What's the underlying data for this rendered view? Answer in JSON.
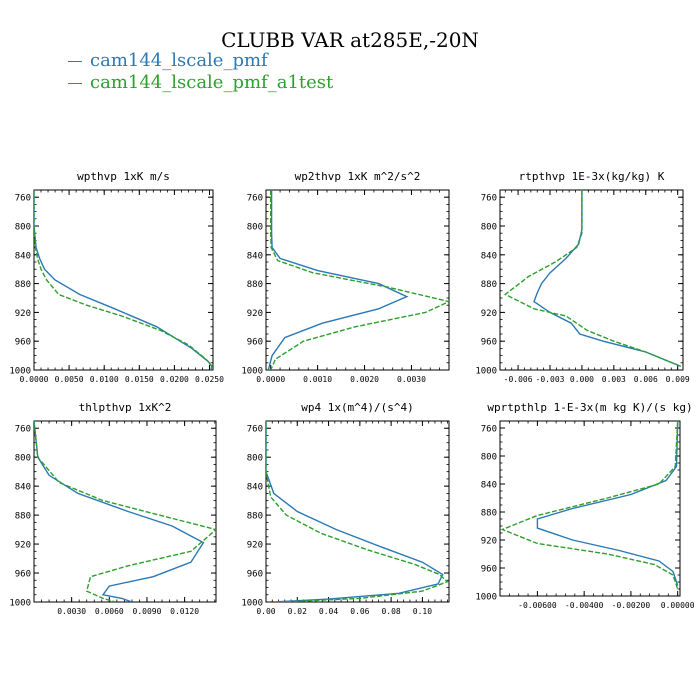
{
  "figure": {
    "title": "CLUBB VAR at285E,-20N",
    "legend": [
      {
        "label": "cam144_lscale_pmf",
        "color": "#2a78b6",
        "style": "solid"
      },
      {
        "label": "cam144_lscale_pmf_a1test",
        "color": "#2ca02c",
        "style": "dashed"
      }
    ]
  },
  "chart_data": [
    {
      "type": "line",
      "title": "wpthvp  1xK m/s",
      "xlim": [
        0.0,
        0.0255
      ],
      "ylim": [
        1000,
        750
      ],
      "xticks": [
        0.0,
        0.005,
        0.01,
        0.015,
        0.02,
        0.025
      ],
      "xticklabels": [
        "0.0000",
        "0.0050",
        "0.0100",
        "0.0150",
        "0.0200",
        "0.0250"
      ],
      "yticks": [
        760,
        800,
        840,
        880,
        920,
        960,
        1000
      ],
      "yticklabels": [
        "760",
        "800",
        "840",
        "880",
        "920",
        "960",
        "1000"
      ],
      "series": [
        {
          "name": "cam144_lscale_pmf",
          "x": [
            0.0,
            0.0,
            0.0003,
            0.0008,
            0.0015,
            0.003,
            0.0065,
            0.0115,
            0.0175,
            0.0225,
            0.0248,
            0.0253,
            0.0252
          ],
          "y": [
            750,
            800,
            830,
            845,
            860,
            875,
            895,
            915,
            940,
            970,
            988,
            995,
            1000
          ]
        },
        {
          "name": "cam144_lscale_pmf_a1test",
          "x": [
            0.0,
            0.0,
            0.0002,
            0.0005,
            0.001,
            0.0018,
            0.0035,
            0.0075,
            0.0125,
            0.018,
            0.022,
            0.0245,
            0.0254,
            0.0254
          ],
          "y": [
            750,
            800,
            830,
            845,
            860,
            875,
            895,
            910,
            925,
            945,
            965,
            985,
            995,
            1000
          ]
        }
      ]
    },
    {
      "type": "line",
      "title": "wp2thvp  1xK m^2/s^2",
      "xlim": [
        -0.0001,
        0.0038
      ],
      "ylim": [
        1000,
        750
      ],
      "xticks": [
        0.0,
        0.001,
        0.002,
        0.003
      ],
      "xticklabels": [
        "0.0000",
        "0.0010",
        "0.0020",
        "0.0030"
      ],
      "yticks": [
        760,
        800,
        840,
        880,
        920,
        960,
        1000
      ],
      "yticklabels": [
        "760",
        "800",
        "840",
        "880",
        "920",
        "960",
        "1000"
      ],
      "series": [
        {
          "name": "cam144_lscale_pmf",
          "x": [
            2e-05,
            2e-05,
            3e-05,
            0.0002,
            0.001,
            0.0023,
            0.0029,
            0.0023,
            0.0011,
            0.0003,
            3e-05,
            -5e-05
          ],
          "y": [
            750,
            810,
            830,
            845,
            862,
            880,
            898,
            915,
            935,
            955,
            980,
            1000
          ]
        },
        {
          "name": "cam144_lscale_pmf_a1test",
          "x": [
            0.0,
            0.0,
            1e-05,
            0.00015,
            0.0009,
            0.0025,
            0.0038,
            0.0033,
            0.0018,
            0.0007,
            0.0001,
            0.0
          ],
          "y": [
            750,
            810,
            830,
            848,
            865,
            885,
            905,
            920,
            940,
            960,
            985,
            1000
          ]
        }
      ]
    },
    {
      "type": "line",
      "title": "rtpthvp  1E-3x(kg/kg) K",
      "xlim": [
        -0.0077,
        0.0095
      ],
      "ylim": [
        1000,
        750
      ],
      "xticks": [
        -0.006,
        -0.003,
        0.0,
        0.003,
        0.006,
        0.009
      ],
      "xticklabels": [
        "-0.006",
        "-0.003",
        "0.000",
        "0.003",
        "0.006",
        "0.009"
      ],
      "yticks": [
        760,
        800,
        840,
        880,
        920,
        960,
        1000
      ],
      "yticklabels": [
        "760",
        "800",
        "840",
        "880",
        "920",
        "960",
        "1000"
      ],
      "series": [
        {
          "name": "cam144_lscale_pmf",
          "x": [
            0.0,
            0.0,
            -0.0003,
            -0.0015,
            -0.003,
            -0.0038,
            -0.0042,
            -0.0045,
            -0.003,
            -0.001,
            -0.0002,
            0.002,
            0.006,
            0.0093
          ],
          "y": [
            750,
            805,
            825,
            845,
            865,
            880,
            893,
            905,
            920,
            935,
            950,
            960,
            975,
            995
          ]
        },
        {
          "name": "cam144_lscale_pmf_a1test",
          "x": [
            0.0,
            0.0,
            -0.0005,
            -0.0025,
            -0.005,
            -0.0072,
            -0.0045,
            -0.0015,
            0.0005,
            0.003,
            0.006,
            0.0093
          ],
          "y": [
            750,
            810,
            830,
            850,
            870,
            895,
            915,
            925,
            945,
            960,
            975,
            995
          ]
        }
      ]
    },
    {
      "type": "line",
      "title": "thlpthvp  1xK^2",
      "xlim": [
        0.0,
        0.0145
      ],
      "ylim": [
        1000,
        750
      ],
      "xticks": [
        0.003,
        0.006,
        0.009,
        0.012
      ],
      "xticklabels": [
        "0.0030",
        "0.0060",
        "0.0090",
        "0.0120"
      ],
      "yticks": [
        760,
        800,
        840,
        880,
        920,
        960,
        1000
      ],
      "yticklabels": [
        "760",
        "800",
        "840",
        "880",
        "920",
        "960",
        "1000"
      ],
      "series": [
        {
          "name": "cam144_lscale_pmf",
          "x": [
            0.0,
            0.0003,
            0.0012,
            0.0035,
            0.0075,
            0.011,
            0.0135,
            0.0125,
            0.0095,
            0.006,
            0.0055,
            0.007,
            0.0078
          ],
          "y": [
            750,
            800,
            825,
            850,
            875,
            895,
            918,
            945,
            965,
            978,
            990,
            995,
            1000
          ]
        },
        {
          "name": "cam144_lscale_pmf_a1test",
          "x": [
            0.0,
            0.0003,
            0.002,
            0.0055,
            0.01,
            0.0145,
            0.0125,
            0.0075,
            0.0045,
            0.0042,
            0.0055,
            0.0065
          ],
          "y": [
            750,
            800,
            835,
            860,
            880,
            900,
            930,
            950,
            965,
            985,
            995,
            1000
          ]
        }
      ]
    },
    {
      "type": "line",
      "title": "wp4  1x(m^4)/(s^4)",
      "xlim": [
        0.0,
        0.117
      ],
      "ylim": [
        1000,
        750
      ],
      "xticks": [
        0.0,
        0.02,
        0.04,
        0.06,
        0.08,
        0.1
      ],
      "xticklabels": [
        "0.00",
        "0.02",
        "0.04",
        "0.06",
        "0.08",
        "0.10"
      ],
      "yticks": [
        760,
        800,
        840,
        880,
        920,
        960,
        1000
      ],
      "yticklabels": [
        "760",
        "800",
        "840",
        "880",
        "920",
        "960",
        "1000"
      ],
      "series": [
        {
          "name": "cam144_lscale_pmf",
          "x": [
            0.0,
            0.0,
            0.005,
            0.02,
            0.045,
            0.075,
            0.1,
            0.113,
            0.11,
            0.085,
            0.04,
            0.005
          ],
          "y": [
            750,
            820,
            850,
            875,
            900,
            925,
            945,
            962,
            975,
            988,
            996,
            1000
          ]
        },
        {
          "name": "cam144_lscale_pmf_a1test",
          "x": [
            0.0,
            0.0,
            0.003,
            0.013,
            0.035,
            0.065,
            0.095,
            0.111,
            0.116,
            0.1,
            0.06,
            0.01
          ],
          "y": [
            750,
            820,
            855,
            880,
            905,
            928,
            948,
            962,
            972,
            985,
            995,
            1000
          ]
        }
      ]
    },
    {
      "type": "line",
      "title": "wprtpthlp  1-E-3x(m kg K)/(s kg)",
      "xlim": [
        -0.0076,
        0.0001
      ],
      "ylim": [
        1000,
        750
      ],
      "xticks": [
        -0.006,
        -0.004,
        -0.002,
        0.0
      ],
      "xticklabels": [
        "-0.00600",
        "-0.00400",
        "-0.00200",
        "0.00000"
      ],
      "yticks": [
        760,
        800,
        840,
        880,
        920,
        960,
        1000
      ],
      "yticklabels": [
        "760",
        "800",
        "840",
        "880",
        "920",
        "960",
        "1000"
      ],
      "series": [
        {
          "name": "cam144_lscale_pmf",
          "x": [
            0.0,
            -5e-05,
            -0.0005,
            -0.002,
            -0.0045,
            -0.006,
            -0.006,
            -0.0045,
            -0.0025,
            -0.0008,
            -0.0002,
            0.0
          ],
          "y": [
            750,
            815,
            835,
            855,
            875,
            890,
            903,
            920,
            935,
            950,
            965,
            985
          ]
        },
        {
          "name": "cam144_lscale_pmf_a1test",
          "x": [
            0.0,
            -0.0001,
            -0.0008,
            -0.003,
            -0.006,
            -0.0075,
            -0.006,
            -0.003,
            -0.001,
            -0.0002,
            0.0
          ],
          "y": [
            750,
            815,
            840,
            860,
            885,
            905,
            925,
            940,
            955,
            970,
            990
          ]
        }
      ]
    }
  ]
}
